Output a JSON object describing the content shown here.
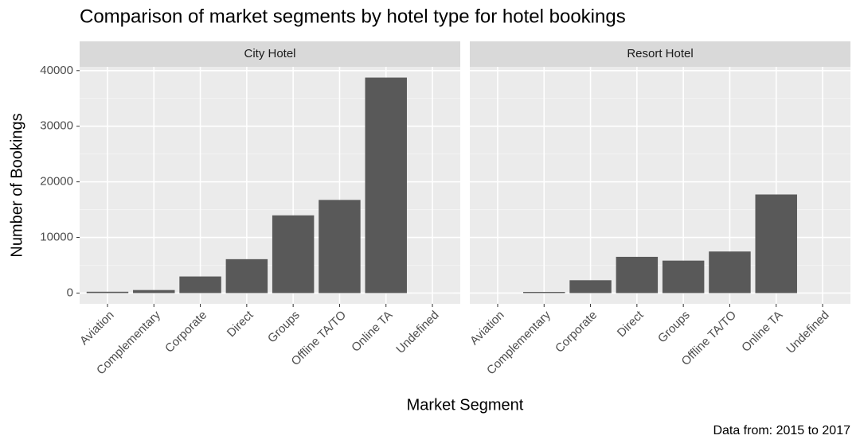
{
  "chart_data": {
    "type": "bar",
    "title": "Comparison of market segments by hotel type for hotel bookings",
    "x_label": "Market Segment",
    "y_label": "Number of Bookings",
    "caption": "Data from: 2015 to 2017",
    "categories": [
      "Aviation",
      "Complementary",
      "Corporate",
      "Direct",
      "Groups",
      "Offline TA/TO",
      "Online TA",
      "Undefined"
    ],
    "facets": [
      {
        "name": "City Hotel",
        "values": [
          237,
          542,
          2986,
          6093,
          13975,
          16747,
          38748,
          2
        ]
      },
      {
        "name": "Resort Hotel",
        "values": [
          0,
          201,
          2309,
          6513,
          5836,
          7472,
          17729,
          0
        ]
      }
    ],
    "color": "#595959",
    "ylim": [
      -1937,
      40685
    ],
    "yticks": [
      0,
      10000,
      20000,
      30000,
      40000
    ],
    "grid": true
  }
}
